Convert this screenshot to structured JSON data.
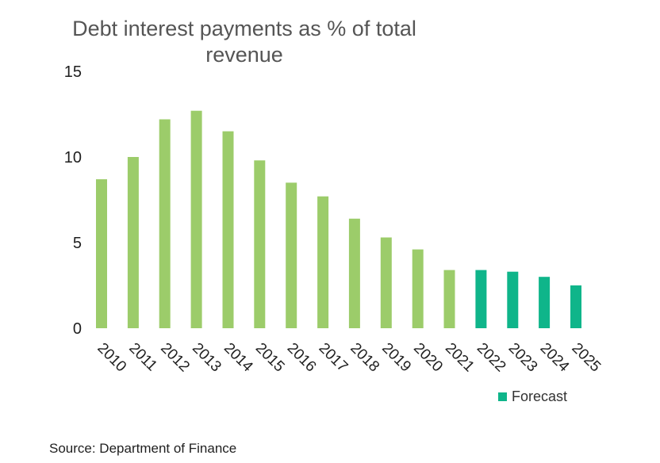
{
  "chart_data": {
    "type": "bar",
    "title": "Debt interest payments as % of total revenue",
    "xlabel": "",
    "ylabel": "",
    "ylim": [
      0,
      15
    ],
    "yticks": [
      0,
      5,
      10,
      15
    ],
    "grid": false,
    "legend_position": "bottom-right",
    "categories": [
      "2010",
      "2011",
      "2012",
      "2013",
      "2014",
      "2015",
      "2016",
      "2017",
      "2018",
      "2019",
      "2020",
      "2021",
      "2022",
      "2023",
      "2024",
      "2025"
    ],
    "values": [
      8.7,
      10.0,
      12.2,
      12.7,
      11.5,
      9.8,
      8.5,
      7.7,
      6.4,
      5.3,
      4.6,
      3.4,
      3.4,
      3.3,
      3.0,
      2.5
    ],
    "forecast_flags": [
      false,
      false,
      false,
      false,
      false,
      false,
      false,
      false,
      false,
      false,
      false,
      false,
      true,
      true,
      true,
      true
    ],
    "colors": {
      "actual": "#9ccc6a",
      "forecast": "#0fb58a"
    },
    "legend": [
      {
        "label": "Forecast",
        "color": "#0fb58a"
      }
    ]
  },
  "source": "Source: Department of Finance"
}
